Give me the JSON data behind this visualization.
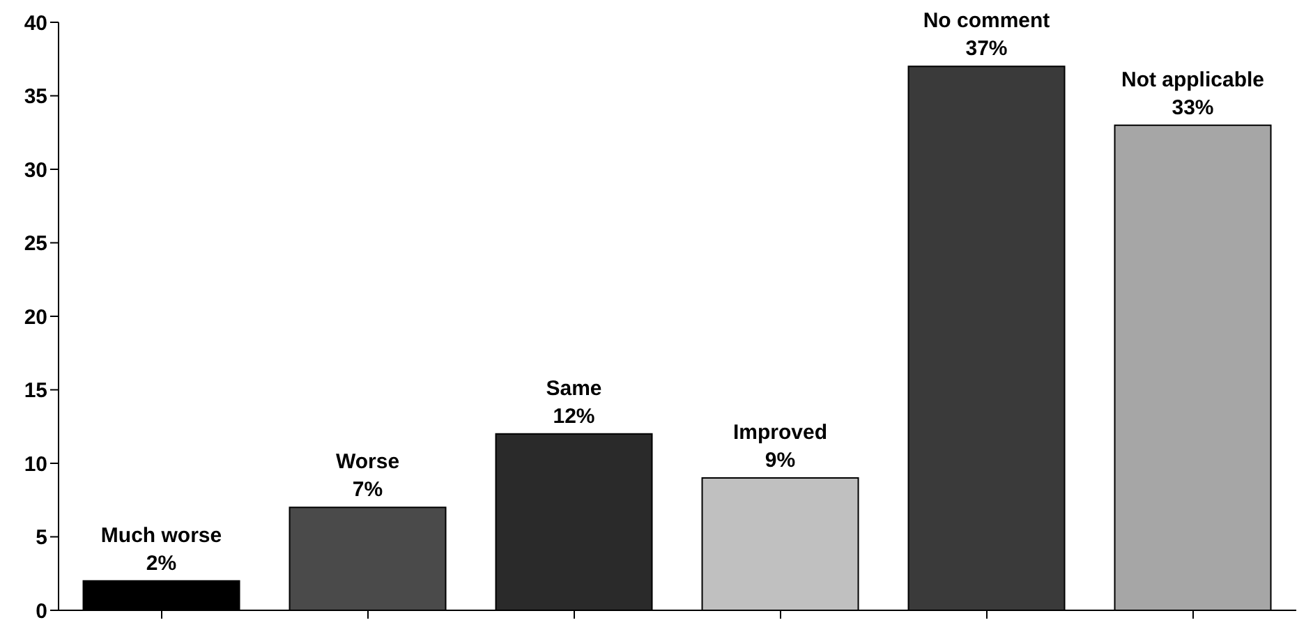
{
  "chart_data": {
    "type": "bar",
    "categories": [
      "Much worse",
      "Worse",
      "Same",
      "Improved",
      "No comment",
      "Not applicable"
    ],
    "values": [
      2,
      7,
      12,
      9,
      37,
      33
    ],
    "value_labels": [
      "2%",
      "7%",
      "12%",
      "9%",
      "37%",
      "33%"
    ],
    "colors": [
      "#000000",
      "#4a4a4a",
      "#2a2a2a",
      "#c0c0c0",
      "#3a3a3a",
      "#a6a6a6"
    ],
    "ylim": [
      0,
      40
    ],
    "yticks": [
      0,
      5,
      10,
      15,
      20,
      25,
      30,
      35,
      40
    ],
    "grid": false
  }
}
